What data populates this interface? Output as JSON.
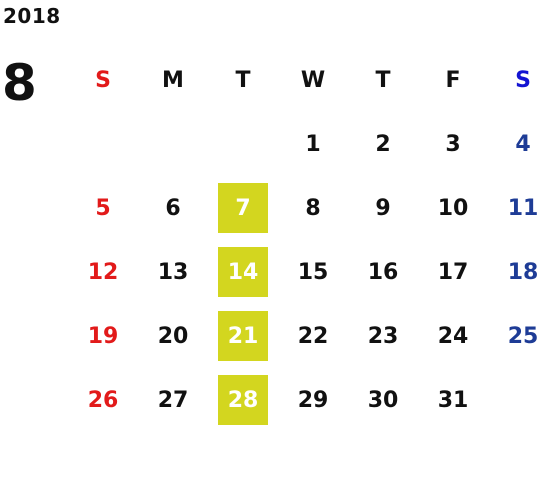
{
  "year": "2018",
  "month": "8",
  "weekday_headers": [
    "S",
    "M",
    "T",
    "W",
    "T",
    "F",
    "S"
  ],
  "weeks": [
    [
      "",
      "",
      "",
      "1",
      "2",
      "3",
      "4"
    ],
    [
      "5",
      "6",
      "7",
      "8",
      "9",
      "10",
      "11"
    ],
    [
      "12",
      "13",
      "14",
      "15",
      "16",
      "17",
      "18"
    ],
    [
      "19",
      "20",
      "21",
      "22",
      "23",
      "24",
      "25"
    ],
    [
      "26",
      "27",
      "28",
      "29",
      "30",
      "31",
      ""
    ]
  ],
  "colors": {
    "sunday": "#e21a1a",
    "saturday_header": "#1414d2",
    "saturday": "#1e3c96",
    "highlight_bg": "#d3d61f",
    "highlight_text": "#ffffff",
    "text": "#111111"
  }
}
